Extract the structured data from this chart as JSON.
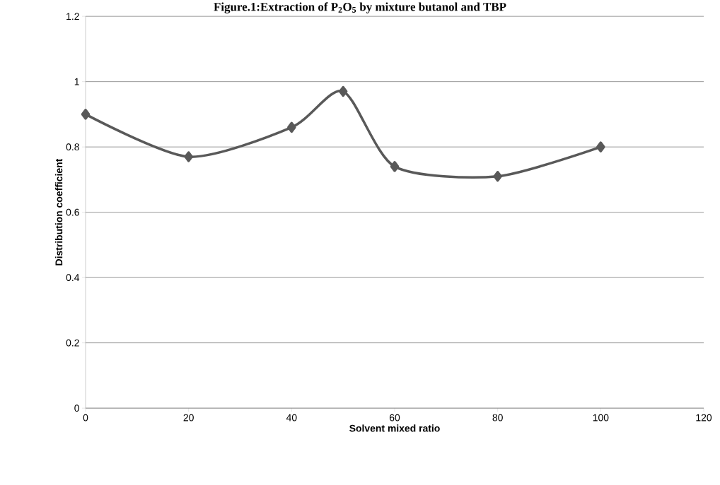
{
  "chart_data": {
    "type": "line",
    "title": "Figure.1:Extraction of P$_{2}$O$_{5}$ by mixture butanol and  TBP",
    "xlabel": "Solvent mixed ratio",
    "ylabel": "Distribution  coefficient",
    "x": [
      0,
      20,
      40,
      50,
      60,
      80,
      100
    ],
    "values": [
      0.9,
      0.77,
      0.86,
      0.97,
      0.74,
      0.71,
      0.8
    ],
    "color": "#595959",
    "marker": "diamond",
    "line_style": "solid",
    "grid": "y",
    "xlim": [
      0,
      120
    ],
    "ylim": [
      0,
      1.2
    ],
    "xticks": [
      0,
      20,
      40,
      60,
      80,
      100,
      120
    ],
    "yticks": [
      0,
      0.2,
      0.4,
      0.6,
      0.8,
      1,
      1.2
    ]
  }
}
